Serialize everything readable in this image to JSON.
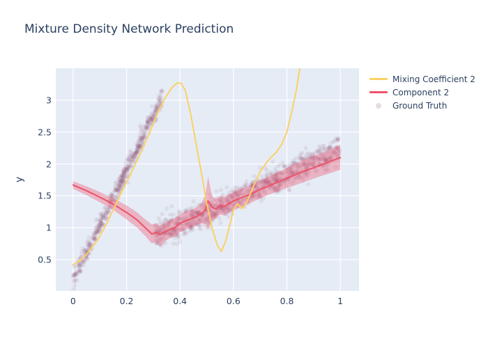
{
  "chart_data": {
    "type": "line",
    "title": "Mixture Density Network Prediction",
    "xlabel": "",
    "ylabel": "y",
    "x_range": [
      -0.065,
      1.07
    ],
    "y_range": [
      0.01,
      3.5
    ],
    "grid": true,
    "plot_bg": "#e5ecf6",
    "grid_color": "#ffffff",
    "tick_color": "#2a3f5f",
    "x_ticks": {
      "values": [
        0,
        0.2,
        0.4,
        0.6,
        0.8,
        1
      ],
      "labels": [
        "0",
        "0.2",
        "0.4",
        "0.6",
        "0.8",
        "1"
      ]
    },
    "y_ticks": {
      "values": [
        0.5,
        1,
        1.5,
        2,
        2.5,
        3
      ],
      "labels": [
        "0.5",
        "1",
        "1.5",
        "2",
        "2.5",
        "3"
      ]
    },
    "legend": {
      "position": "top-right-outside",
      "items": [
        {
          "label": "Mixing Coefficient 2",
          "type": "line",
          "color": "#fcd065"
        },
        {
          "label": "Component 2",
          "type": "line",
          "color": "#ee5268"
        },
        {
          "label": "Ground Truth",
          "type": "marker",
          "color": "rgba(122,62,94,0.18)"
        }
      ]
    },
    "series": [
      {
        "name": "Mixing Coefficient 2",
        "type": "line",
        "color": "#fcd065",
        "width": 2,
        "x": [
          0,
          0.03,
          0.06,
          0.09,
          0.12,
          0.15,
          0.18,
          0.21,
          0.24,
          0.27,
          0.3,
          0.32,
          0.34,
          0.36,
          0.375,
          0.39,
          0.405,
          0.42,
          0.44,
          0.46,
          0.48,
          0.5,
          0.52,
          0.54,
          0.555,
          0.57,
          0.585,
          0.6,
          0.615,
          0.63,
          0.645,
          0.66,
          0.68,
          0.7,
          0.72,
          0.74,
          0.76,
          0.78,
          0.8,
          0.82,
          0.835,
          0.85
        ],
        "y": [
          0.42,
          0.5,
          0.63,
          0.8,
          1.02,
          1.28,
          1.55,
          1.8,
          2.06,
          2.33,
          2.63,
          2.83,
          3.0,
          3.14,
          3.22,
          3.27,
          3.26,
          3.15,
          2.78,
          2.32,
          1.86,
          1.38,
          1.0,
          0.72,
          0.63,
          0.78,
          1.02,
          1.28,
          1.38,
          1.3,
          1.36,
          1.5,
          1.7,
          1.88,
          2.0,
          2.1,
          2.18,
          2.3,
          2.5,
          2.85,
          3.15,
          3.55
        ]
      },
      {
        "name": "Component 2",
        "type": "line",
        "color": "#ee5268",
        "width": 2,
        "x": [
          0,
          0.05,
          0.1,
          0.15,
          0.2,
          0.24,
          0.27,
          0.295,
          0.31,
          0.325,
          0.34,
          0.36,
          0.38,
          0.4,
          0.42,
          0.44,
          0.46,
          0.48,
          0.495,
          0.505,
          0.52,
          0.535,
          0.55,
          0.565,
          0.58,
          0.6,
          0.63,
          0.66,
          0.7,
          0.74,
          0.78,
          0.82,
          0.86,
          0.9,
          0.95,
          1.0
        ],
        "y": [
          1.67,
          1.58,
          1.48,
          1.37,
          1.24,
          1.12,
          1.0,
          0.9,
          0.93,
          0.89,
          0.93,
          0.97,
          1.0,
          1.07,
          1.11,
          1.14,
          1.17,
          1.22,
          1.28,
          1.42,
          1.32,
          1.29,
          1.36,
          1.33,
          1.37,
          1.42,
          1.47,
          1.52,
          1.6,
          1.67,
          1.74,
          1.81,
          1.88,
          1.94,
          2.02,
          2.1
        ],
        "band": {
          "fill": "rgba(238,90,115,0.38)",
          "upper": [
            1.73,
            1.65,
            1.56,
            1.46,
            1.35,
            1.24,
            1.13,
            1.05,
            1.07,
            1.03,
            1.07,
            1.11,
            1.15,
            1.21,
            1.25,
            1.28,
            1.31,
            1.38,
            1.52,
            1.8,
            1.5,
            1.44,
            1.5,
            1.47,
            1.51,
            1.56,
            1.61,
            1.66,
            1.74,
            1.82,
            1.9,
            1.98,
            2.06,
            2.13,
            2.21,
            2.3
          ],
          "lower": [
            1.61,
            1.51,
            1.4,
            1.28,
            1.13,
            1.0,
            0.87,
            0.75,
            0.79,
            0.7,
            0.78,
            0.83,
            0.86,
            0.93,
            0.97,
            1.0,
            1.03,
            1.07,
            1.06,
            0.97,
            1.12,
            1.14,
            1.21,
            1.19,
            1.23,
            1.28,
            1.33,
            1.38,
            1.46,
            1.53,
            1.59,
            1.65,
            1.71,
            1.77,
            1.84,
            1.91
          ]
        }
      },
      {
        "name": "Ground Truth",
        "type": "scatter",
        "marker_color": "rgb(122,62,94)",
        "marker_opacity": 0.085,
        "marker_radius": 3.1,
        "seed": 7,
        "clusters": [
          {
            "count": 520,
            "x_min": 0.0,
            "x_max": 0.335,
            "intercept": 0.2,
            "slope": 8.5,
            "noise_sigma": 0.075
          },
          {
            "count": 980,
            "x_min": 0.305,
            "x_max": 1.0,
            "intercept": 0.285,
            "slope": 1.93,
            "noise_sigma": 0.1
          }
        ]
      }
    ]
  }
}
